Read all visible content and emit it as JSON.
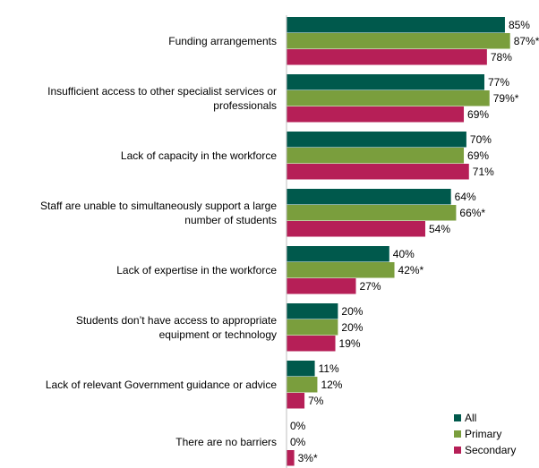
{
  "chart_data": {
    "type": "bar",
    "orientation": "horizontal",
    "categories": [
      [
        "Funding arrangements"
      ],
      [
        "Insufficient access to other specialist services or",
        "professionals"
      ],
      [
        "Lack of capacity in the workforce"
      ],
      [
        "Staff are unable to simultaneously support a large",
        "number of students"
      ],
      [
        "Lack of expertise in the workforce"
      ],
      [
        "Students don’t have access to appropriate",
        "equipment or technology"
      ],
      [
        "Lack of relevant Government guidance or advice"
      ],
      [
        "There are no barriers"
      ]
    ],
    "series": [
      {
        "name": "All",
        "color": "#00594C",
        "values": [
          85,
          77,
          70,
          64,
          40,
          20,
          11,
          0
        ],
        "labels": [
          "85%",
          "77%",
          "70%",
          "64%",
          "40%",
          "20%",
          "11%",
          "0%"
        ]
      },
      {
        "name": "Primary",
        "color": "#7A9E3D",
        "values": [
          87,
          79,
          69,
          66,
          42,
          20,
          12,
          0
        ],
        "labels": [
          "87%*",
          "79%*",
          "69%",
          "66%*",
          "42%*",
          "20%",
          "12%",
          "0%"
        ]
      },
      {
        "name": "Secondary",
        "color": "#B61F57",
        "values": [
          78,
          69,
          71,
          54,
          27,
          19,
          7,
          3
        ],
        "labels": [
          "78%",
          "69%",
          "71%",
          "54%",
          "27%",
          "19%",
          "7%",
          "3%*"
        ]
      }
    ],
    "xlim": [
      0,
      100
    ],
    "grid": false,
    "legend_position": "bottom-right"
  }
}
